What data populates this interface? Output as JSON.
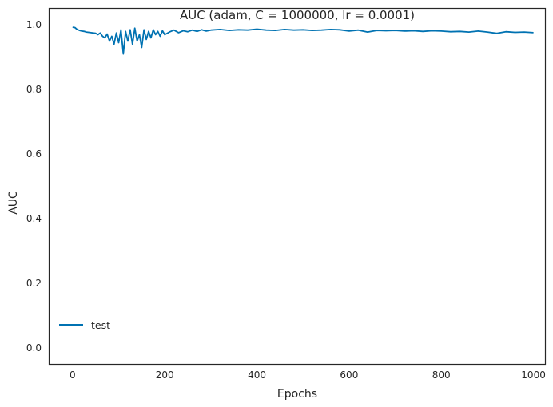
{
  "chart_data": {
    "type": "line",
    "title": "AUC (adam, C = 1000000, lr = 0.0001)",
    "xlabel": "Epochs",
    "ylabel": "AUC",
    "xlim": [
      -50,
      1025
    ],
    "ylim": [
      -0.05,
      1.05
    ],
    "xticks": [
      0,
      200,
      400,
      600,
      800,
      1000
    ],
    "xtick_labels": [
      "0",
      "200",
      "400",
      "600",
      "800",
      "1000"
    ],
    "yticks": [
      0.0,
      0.2,
      0.4,
      0.6,
      0.8,
      1.0
    ],
    "ytick_labels": [
      "0.0",
      "0.2",
      "0.4",
      "0.6",
      "0.8",
      "1.0"
    ],
    "grid": false,
    "legend_position": "lower-left",
    "series": [
      {
        "name": "test",
        "color": "#0072b2",
        "x": [
          0,
          5,
          10,
          15,
          20,
          25,
          30,
          35,
          40,
          45,
          50,
          55,
          60,
          65,
          70,
          75,
          80,
          85,
          90,
          95,
          100,
          105,
          110,
          115,
          120,
          125,
          130,
          135,
          140,
          145,
          150,
          155,
          160,
          165,
          170,
          175,
          180,
          185,
          190,
          195,
          200,
          210,
          220,
          230,
          240,
          250,
          260,
          270,
          280,
          290,
          300,
          320,
          340,
          360,
          380,
          400,
          420,
          440,
          460,
          480,
          500,
          520,
          540,
          560,
          580,
          600,
          620,
          640,
          660,
          680,
          700,
          720,
          740,
          760,
          780,
          800,
          820,
          840,
          860,
          880,
          900,
          920,
          940,
          960,
          980,
          1000
        ],
        "values": [
          0.993,
          0.992,
          0.986,
          0.983,
          0.981,
          0.98,
          0.978,
          0.977,
          0.976,
          0.975,
          0.974,
          0.97,
          0.975,
          0.965,
          0.96,
          0.972,
          0.95,
          0.965,
          0.94,
          0.975,
          0.945,
          0.985,
          0.91,
          0.98,
          0.95,
          0.985,
          0.94,
          0.99,
          0.95,
          0.97,
          0.93,
          0.985,
          0.955,
          0.98,
          0.96,
          0.985,
          0.97,
          0.98,
          0.965,
          0.982,
          0.97,
          0.978,
          0.984,
          0.976,
          0.982,
          0.979,
          0.984,
          0.98,
          0.985,
          0.981,
          0.984,
          0.986,
          0.983,
          0.985,
          0.984,
          0.987,
          0.984,
          0.983,
          0.986,
          0.984,
          0.985,
          0.983,
          0.984,
          0.986,
          0.985,
          0.981,
          0.984,
          0.978,
          0.983,
          0.982,
          0.983,
          0.981,
          0.982,
          0.98,
          0.982,
          0.981,
          0.979,
          0.98,
          0.978,
          0.981,
          0.978,
          0.974,
          0.979,
          0.977,
          0.978,
          0.976
        ]
      }
    ]
  }
}
